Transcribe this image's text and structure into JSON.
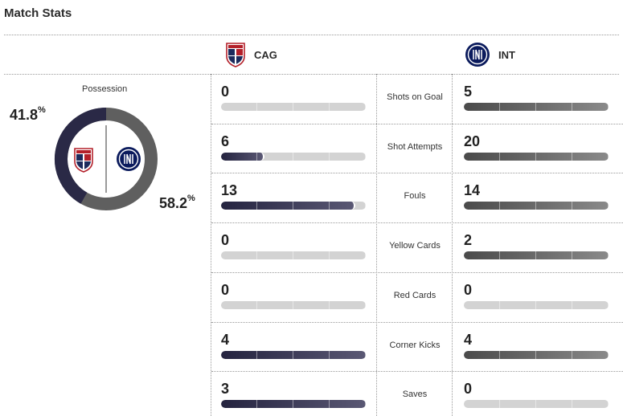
{
  "header": {
    "title": "Match Stats"
  },
  "teams": {
    "home": {
      "abbr": "CAG",
      "crest_icon": "cagliari-crest-icon",
      "color": "#2a2946"
    },
    "away": {
      "abbr": "INT",
      "crest_icon": "inter-crest-icon",
      "color": "#5f5f5f"
    }
  },
  "possession": {
    "label": "Possession",
    "home_value": "41.8",
    "away_value": "58.2",
    "unit": "%"
  },
  "stats": [
    {
      "label": "Shots on Goal",
      "home": "0",
      "away": "5",
      "home_fill": 0.0,
      "away_fill": 1.0
    },
    {
      "label": "Shot Attempts",
      "home": "6",
      "away": "20",
      "home_fill": 0.3,
      "away_fill": 1.0
    },
    {
      "label": "Fouls",
      "home": "13",
      "away": "14",
      "home_fill": 0.93,
      "away_fill": 1.0
    },
    {
      "label": "Yellow Cards",
      "home": "0",
      "away": "2",
      "home_fill": 0.0,
      "away_fill": 1.0
    },
    {
      "label": "Red Cards",
      "home": "0",
      "away": "0",
      "home_fill": 0.0,
      "away_fill": 0.0
    },
    {
      "label": "Corner Kicks",
      "home": "4",
      "away": "4",
      "home_fill": 1.0,
      "away_fill": 1.0
    },
    {
      "label": "Saves",
      "home": "3",
      "away": "0",
      "home_fill": 1.0,
      "away_fill": 0.0
    }
  ]
}
